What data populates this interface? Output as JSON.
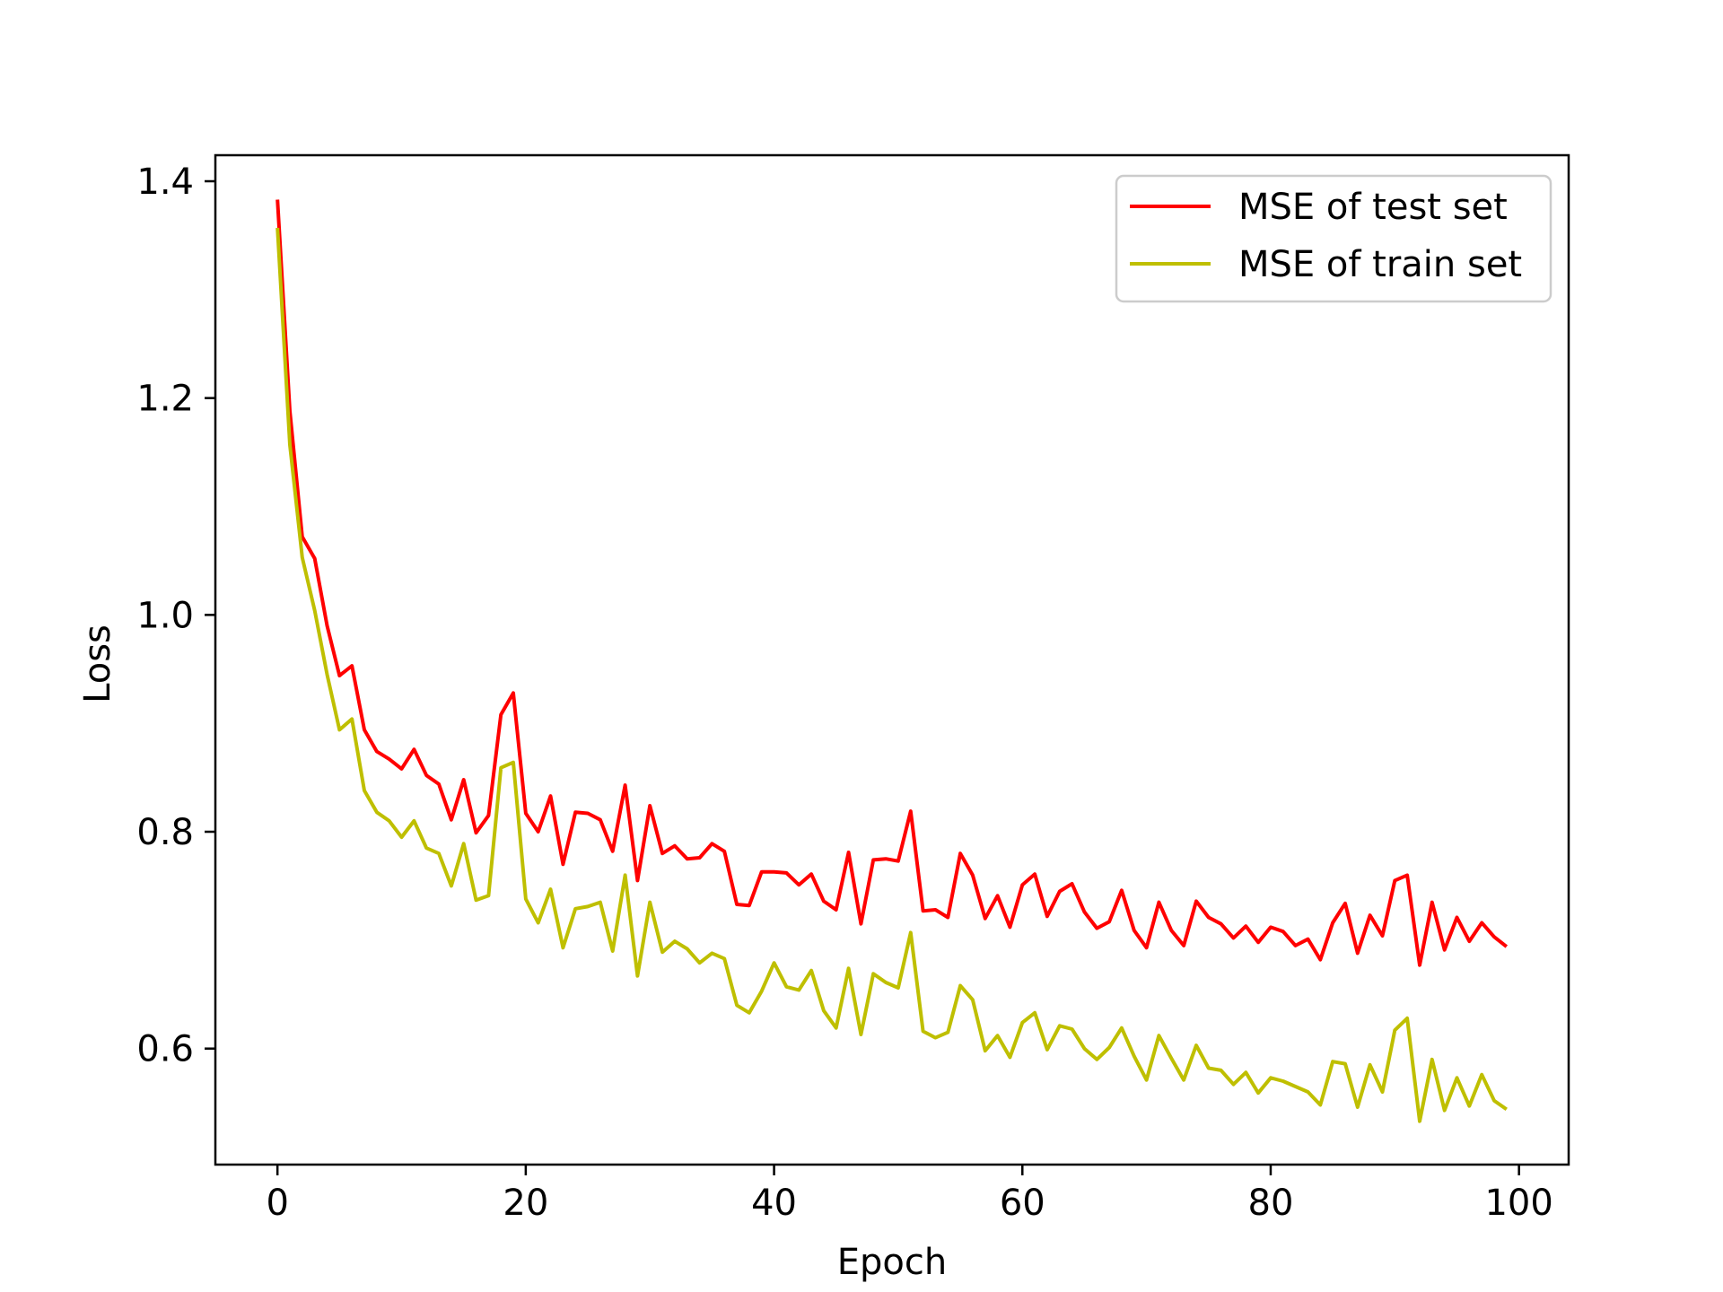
{
  "chart_data": {
    "type": "line",
    "xlabel": "Epoch",
    "ylabel": "Loss",
    "xlim": [
      -5,
      104
    ],
    "ylim": [
      0.493,
      1.424
    ],
    "xticks": [
      0,
      20,
      40,
      60,
      80,
      100
    ],
    "yticks": [
      0.6,
      0.8,
      1.0,
      1.2,
      1.4
    ],
    "xtick_labels": [
      "0",
      "20",
      "40",
      "60",
      "80",
      "100"
    ],
    "ytick_labels": [
      "0.6",
      "0.8",
      "1.0",
      "1.2",
      "1.4"
    ],
    "grid": false,
    "legend_position": "top-right",
    "x": [
      0,
      1,
      2,
      3,
      4,
      5,
      6,
      7,
      8,
      9,
      10,
      11,
      12,
      13,
      14,
      15,
      16,
      17,
      18,
      19,
      20,
      21,
      22,
      23,
      24,
      25,
      26,
      27,
      28,
      29,
      30,
      31,
      32,
      33,
      34,
      35,
      36,
      37,
      38,
      39,
      40,
      41,
      42,
      43,
      44,
      45,
      46,
      47,
      48,
      49,
      50,
      51,
      52,
      53,
      54,
      55,
      56,
      57,
      58,
      59,
      60,
      61,
      62,
      63,
      64,
      65,
      66,
      67,
      68,
      69,
      70,
      71,
      72,
      73,
      74,
      75,
      76,
      77,
      78,
      79,
      80,
      81,
      82,
      83,
      84,
      85,
      86,
      87,
      88,
      89,
      90,
      91,
      92,
      93,
      94,
      95,
      96,
      97,
      98,
      99
    ],
    "series": [
      {
        "name": "MSE of test set",
        "color": "#ff0000",
        "values": [
          1.383,
          1.188,
          1.072,
          1.052,
          0.99,
          0.944,
          0.953,
          0.894,
          0.874,
          0.867,
          0.858,
          0.876,
          0.852,
          0.844,
          0.811,
          0.848,
          0.799,
          0.815,
          0.908,
          0.928,
          0.817,
          0.8,
          0.833,
          0.77,
          0.818,
          0.817,
          0.811,
          0.782,
          0.843,
          0.755,
          0.824,
          0.78,
          0.787,
          0.775,
          0.776,
          0.789,
          0.782,
          0.733,
          0.732,
          0.763,
          0.763,
          0.762,
          0.751,
          0.761,
          0.736,
          0.728,
          0.781,
          0.715,
          0.774,
          0.775,
          0.773,
          0.819,
          0.727,
          0.728,
          0.721,
          0.78,
          0.76,
          0.72,
          0.741,
          0.712,
          0.751,
          0.761,
          0.722,
          0.745,
          0.752,
          0.726,
          0.711,
          0.717,
          0.746,
          0.709,
          0.693,
          0.735,
          0.709,
          0.695,
          0.736,
          0.721,
          0.715,
          0.702,
          0.713,
          0.698,
          0.712,
          0.708,
          0.695,
          0.701,
          0.682,
          0.716,
          0.734,
          0.688,
          0.723,
          0.704,
          0.755,
          0.76,
          0.677,
          0.735,
          0.691,
          0.721,
          0.699,
          0.716,
          0.703,
          0.694
        ]
      },
      {
        "name": "MSE of train set",
        "color": "#bfbf00",
        "values": [
          1.357,
          1.157,
          1.053,
          1.004,
          0.945,
          0.894,
          0.904,
          0.838,
          0.818,
          0.81,
          0.795,
          0.81,
          0.785,
          0.78,
          0.75,
          0.789,
          0.737,
          0.741,
          0.859,
          0.864,
          0.738,
          0.716,
          0.747,
          0.693,
          0.729,
          0.731,
          0.735,
          0.69,
          0.76,
          0.667,
          0.735,
          0.689,
          0.699,
          0.692,
          0.679,
          0.688,
          0.683,
          0.64,
          0.633,
          0.653,
          0.679,
          0.657,
          0.654,
          0.672,
          0.635,
          0.619,
          0.674,
          0.613,
          0.669,
          0.661,
          0.656,
          0.707,
          0.616,
          0.61,
          0.615,
          0.658,
          0.645,
          0.598,
          0.612,
          0.592,
          0.624,
          0.633,
          0.599,
          0.621,
          0.618,
          0.6,
          0.59,
          0.601,
          0.619,
          0.593,
          0.571,
          0.612,
          0.591,
          0.571,
          0.603,
          0.582,
          0.58,
          0.567,
          0.578,
          0.559,
          0.573,
          0.57,
          0.565,
          0.56,
          0.548,
          0.588,
          0.586,
          0.546,
          0.585,
          0.56,
          0.617,
          0.628,
          0.533,
          0.59,
          0.543,
          0.573,
          0.547,
          0.576,
          0.552,
          0.544
        ]
      }
    ]
  }
}
